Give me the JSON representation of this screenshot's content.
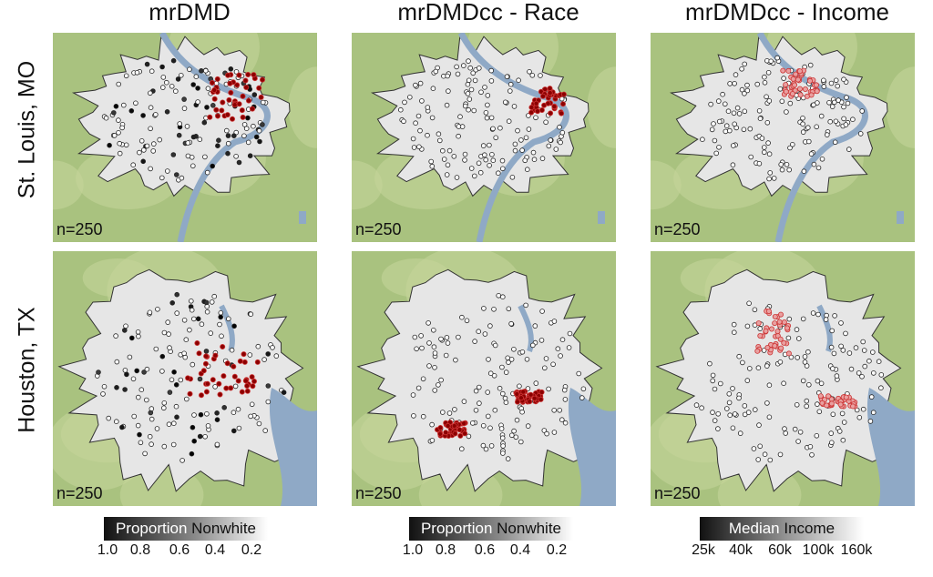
{
  "columns": [
    {
      "title": "mrDMD"
    },
    {
      "title": "mrDMDcc - Race"
    },
    {
      "title": "mrDMDcc - Income"
    }
  ],
  "rows": [
    {
      "label": "St. Louis, MO"
    },
    {
      "label": "Houston, TX"
    }
  ],
  "panel_label": "n=250",
  "legends": [
    {
      "title_left": "Proportion",
      "title_right": "Nonwhite",
      "ticks": [
        "1.0",
        "0.8",
        "0.6",
        "0.4",
        "0.2"
      ]
    },
    {
      "title_left": "Proportion",
      "title_right": "Nonwhite",
      "ticks": [
        "1.0",
        "0.8",
        "0.6",
        "0.4",
        "0.2"
      ]
    },
    {
      "title_left": "Median",
      "title_right": "Income",
      "ticks": [
        "25k",
        "40k",
        "60k",
        "100k",
        "160k"
      ]
    }
  ],
  "colors": {
    "land": "#a9c27f",
    "urban": "#e6e6e6",
    "water": "#8fa9c6",
    "boundary": "#333333",
    "highlight": "#8b0000",
    "highlight_edge": "#cc3333"
  },
  "chart_data": {
    "type": "scatter",
    "description_kind": "map-panels",
    "columns": [
      "mrDMD",
      "mrDMDcc - Race",
      "mrDMDcc - Income"
    ],
    "rows": [
      "St. Louis, MO",
      "Houston, TX"
    ],
    "n": [
      250,
      250,
      250,
      250,
      250,
      250
    ]
  }
}
